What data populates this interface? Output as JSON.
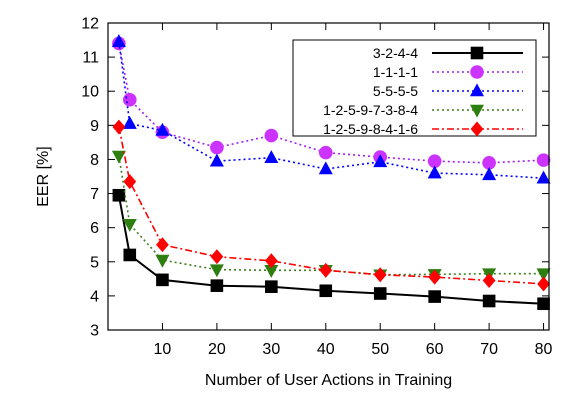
{
  "chart_data": {
    "type": "line",
    "title": "",
    "xlabel": "Number of User Actions in Training",
    "ylabel": "EER [%]",
    "xlim": [
      0,
      81
    ],
    "ylim": [
      3,
      12
    ],
    "xticks": [
      10,
      20,
      30,
      40,
      50,
      60,
      70,
      80
    ],
    "yticks": [
      3,
      4,
      5,
      6,
      7,
      8,
      9,
      10,
      11,
      12
    ],
    "grid": false,
    "legend_position": "top-right",
    "x": [
      2,
      4,
      10,
      20,
      30,
      40,
      50,
      60,
      70,
      80
    ],
    "series": [
      {
        "name": "3-2-4-4",
        "color": "#000000",
        "dash": "solid",
        "marker": "square",
        "marker_color": "#000000",
        "values": [
          6.95,
          5.2,
          4.47,
          4.3,
          4.27,
          4.15,
          4.07,
          3.98,
          3.85,
          3.77
        ]
      },
      {
        "name": "1-1-1-1",
        "color": "#a020f0",
        "dash": "dotted",
        "marker": "circle",
        "marker_color": "#cc33ff",
        "values": [
          11.4,
          9.75,
          8.8,
          8.35,
          8.7,
          8.2,
          8.07,
          7.95,
          7.9,
          7.98
        ]
      },
      {
        "name": "5-5-5-5",
        "color": "#0000ff",
        "dash": "dotted",
        "marker": "triangle-up",
        "marker_color": "#0000ff",
        "values": [
          11.45,
          9.05,
          8.85,
          7.95,
          8.05,
          7.72,
          7.93,
          7.6,
          7.55,
          7.45
        ]
      },
      {
        "name": "1-2-5-9-7-3-8-4",
        "color": "#3f7f1f",
        "dash": "dotted",
        "marker": "triangle-down",
        "marker_color": "#2f7f10",
        "values": [
          8.1,
          6.1,
          5.05,
          4.77,
          4.75,
          4.75,
          4.62,
          4.63,
          4.65,
          4.65
        ]
      },
      {
        "name": "1-2-5-9-8-4-1-6",
        "color": "#ff0000",
        "dash": "dashdot",
        "marker": "diamond",
        "marker_color": "#ff0000",
        "values": [
          8.95,
          7.35,
          5.5,
          5.15,
          5.03,
          4.75,
          4.62,
          4.55,
          4.45,
          4.35
        ]
      }
    ]
  }
}
